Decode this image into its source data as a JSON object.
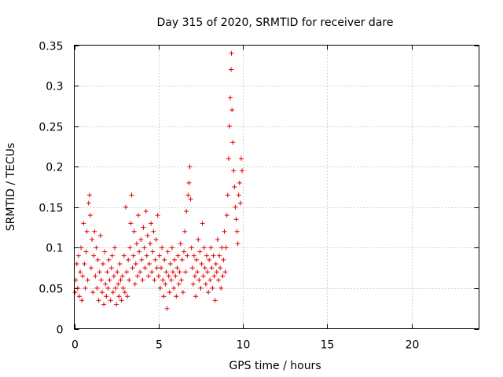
{
  "chart_data": {
    "type": "scatter",
    "title": "Day 315 of 2020, SRMTID for receiver dare",
    "xlabel": "GPS time / hours",
    "ylabel": "SRMTID / TECUs",
    "xlim": [
      0,
      24
    ],
    "ylim": [
      0,
      0.35
    ],
    "xticks": [
      0,
      5,
      10,
      15,
      20
    ],
    "xtick_labels": [
      "0",
      "5",
      "10",
      "15",
      "20"
    ],
    "yticks": [
      0,
      0.05,
      0.1,
      0.15,
      0.2,
      0.25,
      0.3,
      0.35
    ],
    "ytick_labels": [
      "0",
      "0.05",
      "0.1",
      "0.15",
      "0.2",
      "0.25",
      "0.3",
      "0.35"
    ],
    "grid": true,
    "marker": "+",
    "color": "#e00000",
    "series": [
      {
        "points": [
          [
            0.05,
            0.045
          ],
          [
            0.1,
            0.06
          ],
          [
            0.15,
            0.08
          ],
          [
            0.2,
            0.05
          ],
          [
            0.25,
            0.09
          ],
          [
            0.3,
            0.04
          ],
          [
            0.35,
            0.07
          ],
          [
            0.4,
            0.1
          ],
          [
            0.45,
            0.035
          ],
          [
            0.5,
            0.065
          ],
          [
            0.55,
            0.13
          ],
          [
            0.6,
            0.08
          ],
          [
            0.65,
            0.05
          ],
          [
            0.7,
            0.095
          ],
          [
            0.75,
            0.12
          ],
          [
            0.8,
            0.06
          ],
          [
            0.85,
            0.155
          ],
          [
            0.9,
            0.165
          ],
          [
            0.95,
            0.14
          ],
          [
            1.0,
            0.075
          ],
          [
            1.05,
            0.11
          ],
          [
            1.1,
            0.045
          ],
          [
            1.15,
            0.09
          ],
          [
            1.2,
            0.12
          ],
          [
            1.25,
            0.065
          ],
          [
            1.3,
            0.1
          ],
          [
            1.35,
            0.05
          ],
          [
            1.4,
            0.085
          ],
          [
            1.45,
            0.035
          ],
          [
            1.5,
            0.07
          ],
          [
            1.55,
            0.115
          ],
          [
            1.6,
            0.06
          ],
          [
            1.65,
            0.045
          ],
          [
            1.7,
            0.08
          ],
          [
            1.75,
            0.03
          ],
          [
            1.8,
            0.095
          ],
          [
            1.85,
            0.055
          ],
          [
            1.9,
            0.04
          ],
          [
            1.95,
            0.07
          ],
          [
            2.0,
            0.05
          ],
          [
            2.05,
            0.085
          ],
          [
            2.1,
            0.06
          ],
          [
            2.15,
            0.035
          ],
          [
            2.2,
            0.075
          ],
          [
            2.25,
            0.09
          ],
          [
            2.3,
            0.045
          ],
          [
            2.35,
            0.065
          ],
          [
            2.4,
            0.1
          ],
          [
            2.45,
            0.05
          ],
          [
            2.5,
            0.03
          ],
          [
            2.55,
            0.07
          ],
          [
            2.6,
            0.055
          ],
          [
            2.65,
            0.04
          ],
          [
            2.7,
            0.08
          ],
          [
            2.75,
            0.06
          ],
          [
            2.8,
            0.035
          ],
          [
            2.85,
            0.065
          ],
          [
            2.9,
            0.05
          ],
          [
            2.95,
            0.09
          ],
          [
            3.0,
            0.045
          ],
          [
            3.05,
            0.15
          ],
          [
            3.1,
            0.07
          ],
          [
            3.15,
            0.04
          ],
          [
            3.2,
            0.085
          ],
          [
            3.25,
            0.06
          ],
          [
            3.3,
            0.1
          ],
          [
            3.35,
            0.13
          ],
          [
            3.4,
            0.165
          ],
          [
            3.45,
            0.075
          ],
          [
            3.5,
            0.09
          ],
          [
            3.55,
            0.12
          ],
          [
            3.6,
            0.055
          ],
          [
            3.65,
            0.08
          ],
          [
            3.7,
            0.105
          ],
          [
            3.75,
            0.065
          ],
          [
            3.8,
            0.14
          ],
          [
            3.85,
            0.095
          ],
          [
            3.9,
            0.07
          ],
          [
            3.95,
            0.11
          ],
          [
            4.0,
            0.085
          ],
          [
            4.05,
            0.06
          ],
          [
            4.1,
            0.125
          ],
          [
            4.15,
            0.1
          ],
          [
            4.2,
            0.075
          ],
          [
            4.25,
            0.145
          ],
          [
            4.3,
            0.09
          ],
          [
            4.35,
            0.115
          ],
          [
            4.4,
            0.065
          ],
          [
            4.45,
            0.08
          ],
          [
            4.5,
            0.105
          ],
          [
            4.55,
            0.13
          ],
          [
            4.6,
            0.07
          ],
          [
            4.65,
            0.095
          ],
          [
            4.7,
            0.12
          ],
          [
            4.75,
            0.06
          ],
          [
            4.8,
            0.085
          ],
          [
            4.85,
            0.11
          ],
          [
            4.9,
            0.075
          ],
          [
            4.95,
            0.14
          ],
          [
            5.0,
            0.065
          ],
          [
            5.05,
            0.09
          ],
          [
            5.1,
            0.05
          ],
          [
            5.15,
            0.075
          ],
          [
            5.2,
            0.1
          ],
          [
            5.25,
            0.06
          ],
          [
            5.3,
            0.04
          ],
          [
            5.35,
            0.085
          ],
          [
            5.4,
            0.055
          ],
          [
            5.45,
            0.07
          ],
          [
            5.5,
            0.025
          ],
          [
            5.55,
            0.095
          ],
          [
            5.6,
            0.065
          ],
          [
            5.65,
            0.045
          ],
          [
            5.7,
            0.08
          ],
          [
            5.75,
            0.06
          ],
          [
            5.8,
            0.1
          ],
          [
            5.85,
            0.07
          ],
          [
            5.9,
            0.05
          ],
          [
            5.95,
            0.085
          ],
          [
            6.0,
            0.065
          ],
          [
            6.05,
            0.04
          ],
          [
            6.1,
            0.075
          ],
          [
            6.15,
            0.09
          ],
          [
            6.2,
            0.055
          ],
          [
            6.25,
            0.07
          ],
          [
            6.3,
            0.105
          ],
          [
            6.35,
            0.06
          ],
          [
            6.4,
            0.085
          ],
          [
            6.45,
            0.045
          ],
          [
            6.5,
            0.095
          ],
          [
            6.55,
            0.12
          ],
          [
            6.6,
            0.07
          ],
          [
            6.65,
            0.145
          ],
          [
            6.7,
            0.09
          ],
          [
            6.75,
            0.165
          ],
          [
            6.8,
            0.18
          ],
          [
            6.85,
            0.2
          ],
          [
            6.9,
            0.16
          ],
          [
            6.95,
            0.1
          ],
          [
            7.0,
            0.075
          ],
          [
            7.05,
            0.055
          ],
          [
            7.1,
            0.09
          ],
          [
            7.15,
            0.065
          ],
          [
            7.2,
            0.04
          ],
          [
            7.25,
            0.085
          ],
          [
            7.3,
            0.07
          ],
          [
            7.35,
            0.11
          ],
          [
            7.4,
            0.06
          ],
          [
            7.45,
            0.095
          ],
          [
            7.5,
            0.05
          ],
          [
            7.55,
            0.08
          ],
          [
            7.6,
            0.13
          ],
          [
            7.65,
            0.065
          ],
          [
            7.7,
            0.1
          ],
          [
            7.75,
            0.075
          ],
          [
            7.8,
            0.055
          ],
          [
            7.85,
            0.09
          ],
          [
            7.9,
            0.07
          ],
          [
            7.95,
            0.045
          ],
          [
            8.0,
            0.085
          ],
          [
            8.05,
            0.06
          ],
          [
            8.1,
            0.1
          ],
          [
            8.15,
            0.075
          ],
          [
            8.2,
            0.05
          ],
          [
            8.25,
            0.09
          ],
          [
            8.3,
            0.065
          ],
          [
            8.35,
            0.035
          ],
          [
            8.4,
            0.08
          ],
          [
            8.45,
            0.07
          ],
          [
            8.5,
            0.11
          ],
          [
            8.55,
            0.06
          ],
          [
            8.6,
            0.09
          ],
          [
            8.65,
            0.075
          ],
          [
            8.7,
            0.05
          ],
          [
            8.75,
            0.1
          ],
          [
            8.8,
            0.065
          ],
          [
            8.85,
            0.085
          ],
          [
            8.9,
            0.12
          ],
          [
            8.95,
            0.07
          ],
          [
            9.0,
            0.1
          ],
          [
            9.05,
            0.14
          ],
          [
            9.1,
            0.165
          ],
          [
            9.15,
            0.21
          ],
          [
            9.2,
            0.25
          ],
          [
            9.25,
            0.285
          ],
          [
            9.3,
            0.32
          ],
          [
            9.32,
            0.34
          ],
          [
            9.35,
            0.27
          ],
          [
            9.4,
            0.23
          ],
          [
            9.45,
            0.195
          ],
          [
            9.5,
            0.175
          ],
          [
            9.55,
            0.15
          ],
          [
            9.6,
            0.135
          ],
          [
            9.65,
            0.12
          ],
          [
            9.7,
            0.105
          ],
          [
            9.75,
            0.165
          ],
          [
            9.8,
            0.18
          ],
          [
            9.85,
            0.155
          ],
          [
            9.9,
            0.21
          ],
          [
            9.95,
            0.195
          ]
        ]
      }
    ]
  }
}
